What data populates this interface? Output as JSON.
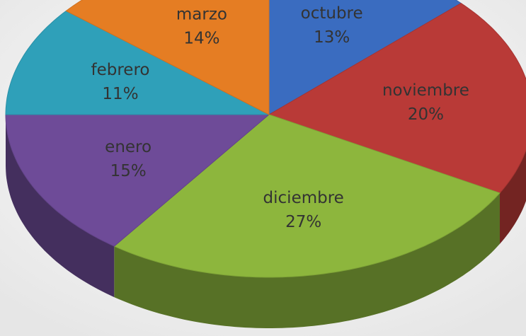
{
  "chart_data": {
    "type": "pie3d",
    "categories": [
      "octubre",
      "noviembre",
      "diciembre",
      "enero",
      "febrero",
      "marzo"
    ],
    "values": [
      13,
      20,
      27,
      15,
      11,
      14
    ],
    "value_labels": [
      "13%",
      "20%",
      "27%",
      "15%",
      "11%",
      "14%"
    ],
    "colors": [
      "#3a6cc0",
      "#b93a37",
      "#8db63d",
      "#6e4b98",
      "#2fa0b9",
      "#e57d23"
    ]
  }
}
